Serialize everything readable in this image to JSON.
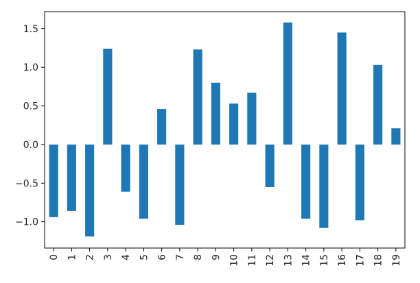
{
  "chart_data": {
    "type": "bar",
    "categories": [
      "0",
      "1",
      "2",
      "3",
      "4",
      "5",
      "6",
      "7",
      "8",
      "9",
      "10",
      "11",
      "12",
      "13",
      "14",
      "15",
      "16",
      "17",
      "18",
      "19"
    ],
    "values": [
      -0.94,
      -0.86,
      -1.19,
      1.24,
      -0.61,
      -0.96,
      0.46,
      -1.04,
      1.23,
      0.8,
      0.53,
      0.67,
      -0.55,
      1.58,
      -0.96,
      -1.08,
      1.45,
      -0.98,
      1.03,
      0.21
    ],
    "title": "",
    "xlabel": "",
    "ylabel": "",
    "ylim": [
      -1.34,
      1.72
    ],
    "yticks": [
      -1.0,
      -0.5,
      0.0,
      0.5,
      1.0,
      1.5
    ],
    "ytick_labels": [
      "−1.0",
      "−0.5",
      "0.0",
      "0.5",
      "1.0",
      "1.5"
    ],
    "grid": false,
    "bar_color": "#1f77b4"
  }
}
